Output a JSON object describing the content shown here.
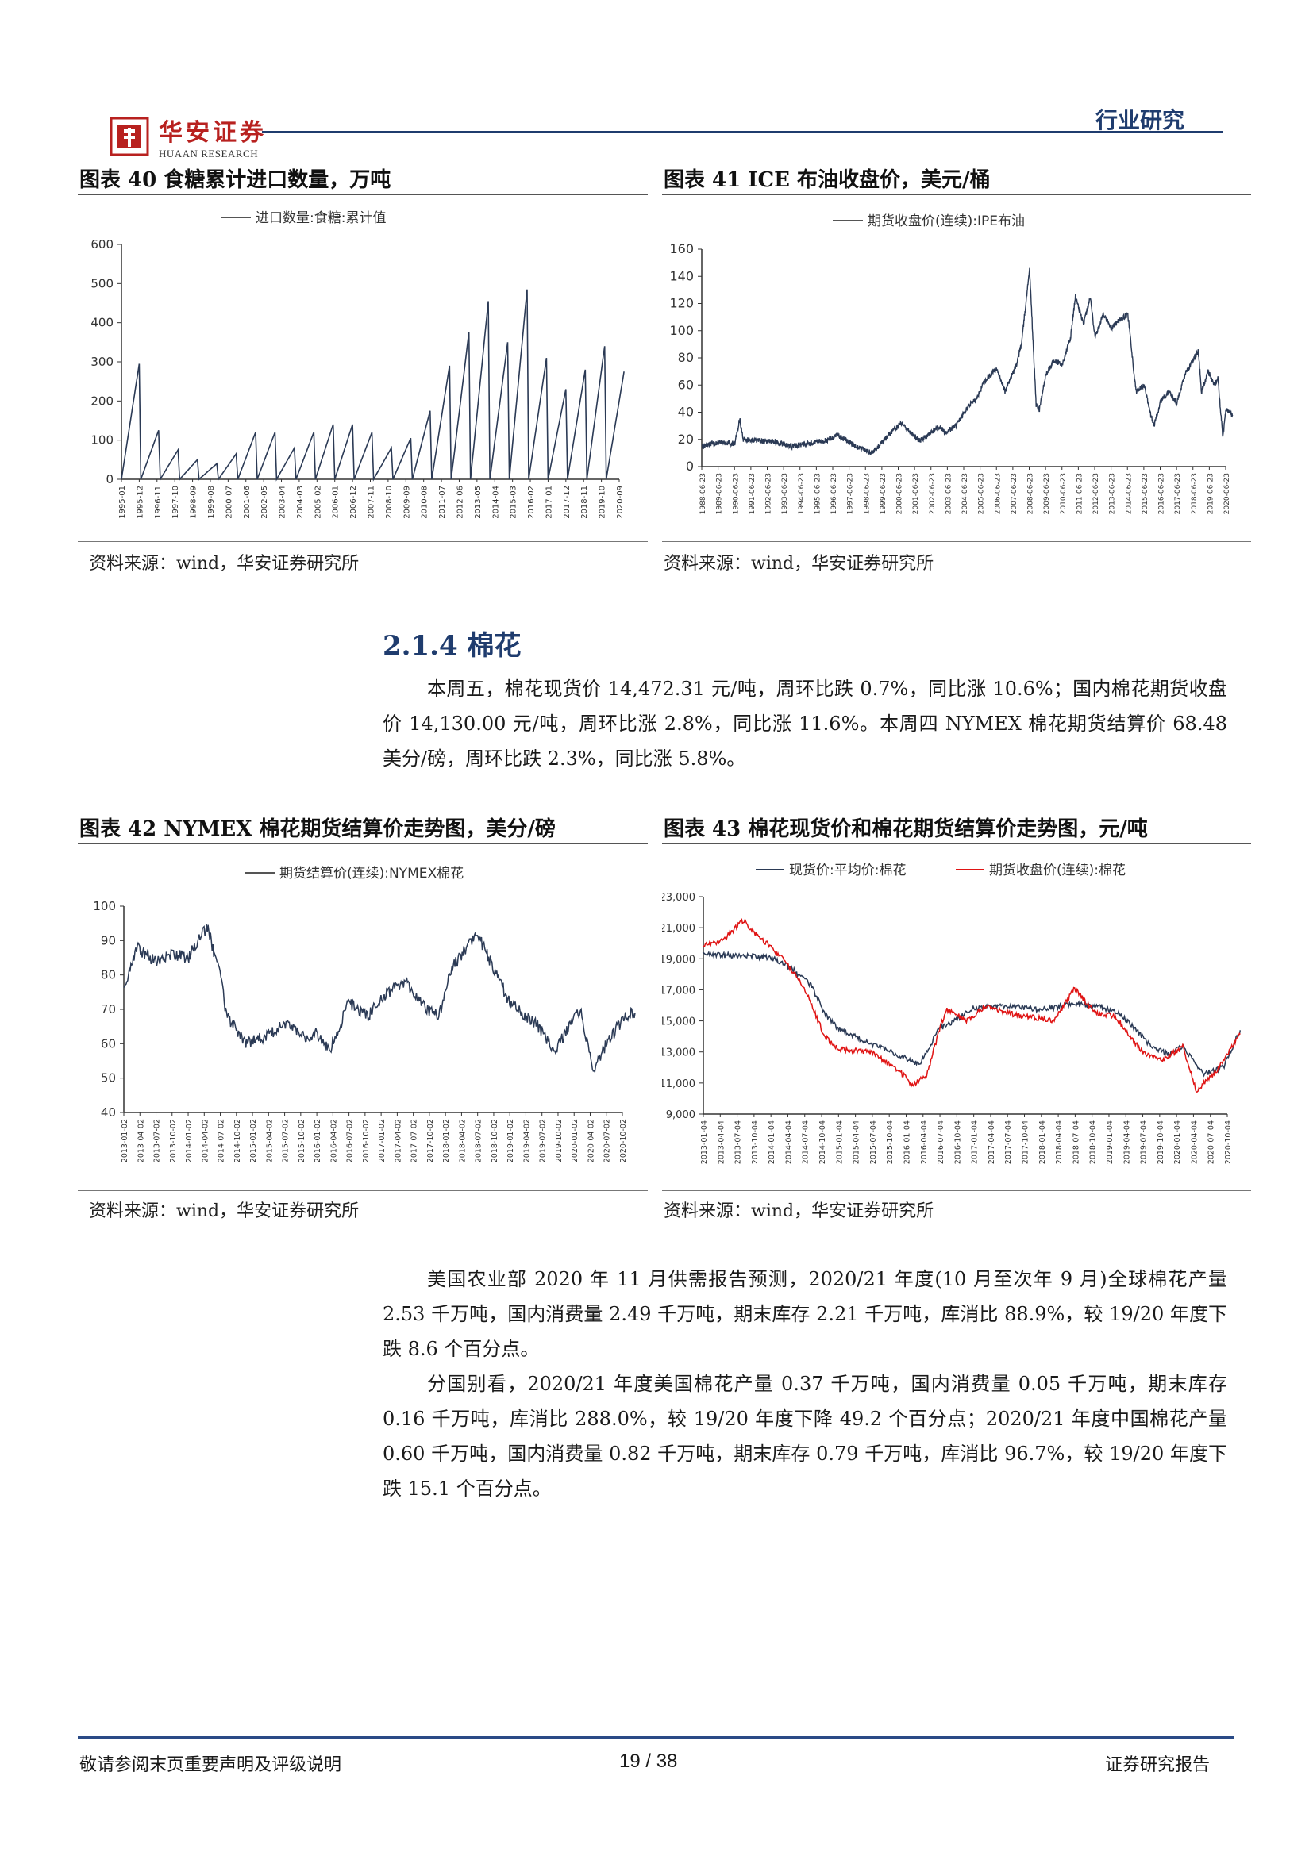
{
  "header": {
    "brand_name": "华安证券",
    "brand_sub": "HUAAN RESEARCH",
    "category": "行业研究"
  },
  "figures": {
    "fig40": {
      "title": "图表 40 食糖累计进口数量，万吨",
      "legend": "进口数量:食糖:累计值",
      "source": "资料来源：wind，华安证券研究所"
    },
    "fig41": {
      "title": "图表 41 ICE 布油收盘价，美元/桶",
      "legend": "期货收盘价(连续):IPE布油",
      "source": "资料来源：wind，华安证券研究所"
    },
    "fig42": {
      "title": "图表 42 NYMEX 棉花期货结算价走势图，美分/磅",
      "legend": "期货结算价(连续):NYMEX棉花",
      "source": "资料来源：wind，华安证券研究所"
    },
    "fig43": {
      "title": "图表 43 棉花现货价和棉花期货结算价走势图，元/吨",
      "legend1": "现货价:平均价:棉花",
      "legend2": "期货收盘价(连续):棉花",
      "source": "资料来源：wind，华安证券研究所"
    }
  },
  "section": {
    "title": "2.1.4 棉花"
  },
  "paragraphs": {
    "p1": "本周五，棉花现货价 14,472.31 元/吨，周环比跌 0.7%，同比涨 10.6%；国内棉花期货收盘价 14,130.00 元/吨，周环比涨 2.8%，同比涨 11.6%。本周四 NYMEX 棉花期货结算价 68.48 美分/磅，周环比跌 2.3%，同比涨 5.8%。",
    "p2": "美国农业部 2020 年 11 月供需报告预测，2020/21 年度(10 月至次年 9 月)全球棉花产量 2.53 千万吨，国内消费量 2.49 千万吨，期末库存 2.21 千万吨，库消比 88.9%，较 19/20 年度下跌 8.6 个百分点。",
    "p3": "分国别看，2020/21 年度美国棉花产量 0.37 千万吨，国内消费量 0.05 千万吨，期末库存 0.16 千万吨，库消比 288.0%，较 19/20 年度下降 49.2 个百分点；2020/21 年度中国棉花产量 0.60 千万吨，国内消费量 0.82 千万吨，期末库存 0.79 千万吨，库消比 96.7%，较 19/20 年度下跌 15.1 个百分点。"
  },
  "footer": {
    "disclaimer": "敬请参阅末页重要声明及评级说明",
    "page": "19 / 38",
    "report_type": "证券研究报告"
  },
  "colors": {
    "brand_red": "#b8211f",
    "navy": "#1f3c6e",
    "series_dark": "#2b3a55",
    "series_red": "#e01414"
  },
  "chart_data": [
    {
      "id": "fig40",
      "type": "line",
      "title": "",
      "ylim": [
        0,
        600
      ],
      "yticks": [
        0,
        100,
        200,
        300,
        400,
        500,
        600
      ],
      "xtick_labels": [
        "1995-01",
        "1995-12",
        "1996-11",
        "1997-10",
        "1998-09",
        "1999-08",
        "2000-07",
        "2001-06",
        "2002-05",
        "2003-04",
        "2004-03",
        "2005-02",
        "2006-01",
        "2006-12",
        "2007-11",
        "2008-10",
        "2009-09",
        "2010-08",
        "2011-07",
        "2012-06",
        "2013-05",
        "2014-04",
        "2015-03",
        "2016-02",
        "2017-01",
        "2017-12",
        "2018-11",
        "2019-10",
        "2020-09"
      ],
      "series": [
        {
          "name": "进口数量:食糖:累计值",
          "annual_peaks": [
            {
              "year": 1995,
              "value": 295
            },
            {
              "year": 1996,
              "value": 125
            },
            {
              "year": 1997,
              "value": 75
            },
            {
              "year": 1998,
              "value": 50
            },
            {
              "year": 1999,
              "value": 40
            },
            {
              "year": 2000,
              "value": 65
            },
            {
              "year": 2001,
              "value": 120
            },
            {
              "year": 2002,
              "value": 120
            },
            {
              "year": 2003,
              "value": 80
            },
            {
              "year": 2004,
              "value": 120
            },
            {
              "year": 2005,
              "value": 140
            },
            {
              "year": 2006,
              "value": 140
            },
            {
              "year": 2007,
              "value": 120
            },
            {
              "year": 2008,
              "value": 80
            },
            {
              "year": 2009,
              "value": 105
            },
            {
              "year": 2010,
              "value": 175
            },
            {
              "year": 2011,
              "value": 290
            },
            {
              "year": 2012,
              "value": 375
            },
            {
              "year": 2013,
              "value": 455
            },
            {
              "year": 2014,
              "value": 350
            },
            {
              "year": 2015,
              "value": 485
            },
            {
              "year": 2016,
              "value": 310
            },
            {
              "year": 2017,
              "value": 230
            },
            {
              "year": 2018,
              "value": 280
            },
            {
              "year": 2019,
              "value": 340
            },
            {
              "year": 2020,
              "value": 275
            }
          ]
        }
      ]
    },
    {
      "id": "fig41",
      "type": "line",
      "title": "",
      "ylim": [
        0,
        160
      ],
      "yticks": [
        0,
        20,
        40,
        60,
        80,
        100,
        120,
        140,
        160
      ],
      "xtick_labels": [
        "1988-06-23",
        "1989-06-23",
        "1990-06-23",
        "1991-06-23",
        "1992-06-23",
        "1993-06-23",
        "1994-06-23",
        "1995-06-23",
        "1996-06-23",
        "1997-06-23",
        "1998-06-23",
        "1999-06-23",
        "2000-06-23",
        "2001-06-23",
        "2002-06-23",
        "2003-06-23",
        "2004-06-23",
        "2005-06-23",
        "2006-06-23",
        "2007-06-23",
        "2008-06-23",
        "2009-06-23",
        "2010-06-23",
        "2011-06-23",
        "2012-06-23",
        "2013-06-23",
        "2014-06-23",
        "2015-06-23",
        "2016-06-23",
        "2017-06-23",
        "2018-06-23",
        "2019-06-23",
        "2020-06-23"
      ],
      "series": [
        {
          "name": "期货收盘价(连续):IPE布油",
          "points": [
            [
              1988.5,
              15
            ],
            [
              1989.5,
              18
            ],
            [
              1990.5,
              17
            ],
            [
              1990.8,
              35
            ],
            [
              1991.0,
              20
            ],
            [
              1992.0,
              19
            ],
            [
              1993.0,
              18
            ],
            [
              1994.0,
              15
            ],
            [
              1995.0,
              17
            ],
            [
              1996.0,
              19
            ],
            [
              1996.8,
              23
            ],
            [
              1997.5,
              18
            ],
            [
              1998.0,
              14
            ],
            [
              1998.9,
              10
            ],
            [
              1999.5,
              18
            ],
            [
              2000.0,
              25
            ],
            [
              2000.7,
              32
            ],
            [
              2001.0,
              27
            ],
            [
              2001.8,
              19
            ],
            [
              2002.5,
              25
            ],
            [
              2003.0,
              30
            ],
            [
              2003.3,
              25
            ],
            [
              2004.0,
              30
            ],
            [
              2004.8,
              45
            ],
            [
              2005.3,
              50
            ],
            [
              2005.7,
              62
            ],
            [
              2006.5,
              72
            ],
            [
              2007.0,
              55
            ],
            [
              2007.7,
              75
            ],
            [
              2008.0,
              90
            ],
            [
              2008.5,
              145
            ],
            [
              2008.9,
              45
            ],
            [
              2009.1,
              42
            ],
            [
              2009.5,
              68
            ],
            [
              2010.0,
              78
            ],
            [
              2010.5,
              75
            ],
            [
              2011.0,
              95
            ],
            [
              2011.3,
              125
            ],
            [
              2011.8,
              105
            ],
            [
              2012.2,
              125
            ],
            [
              2012.5,
              95
            ],
            [
              2013.0,
              112
            ],
            [
              2013.5,
              102
            ],
            [
              2014.0,
              108
            ],
            [
              2014.5,
              112
            ],
            [
              2015.0,
              55
            ],
            [
              2015.5,
              60
            ],
            [
              2015.9,
              38
            ],
            [
              2016.1,
              30
            ],
            [
              2016.5,
              48
            ],
            [
              2017.0,
              55
            ],
            [
              2017.5,
              47
            ],
            [
              2018.0,
              68
            ],
            [
              2018.8,
              85
            ],
            [
              2019.0,
              55
            ],
            [
              2019.4,
              70
            ],
            [
              2019.8,
              60
            ],
            [
              2020.0,
              65
            ],
            [
              2020.3,
              22
            ],
            [
              2020.5,
              42
            ],
            [
              2020.9,
              38
            ]
          ]
        }
      ]
    },
    {
      "id": "fig42",
      "type": "line",
      "title": "",
      "ylim": [
        40,
        100
      ],
      "yticks": [
        40,
        50,
        60,
        70,
        80,
        90,
        100
      ],
      "xtick_labels": [
        "2013-01-02",
        "2013-04-02",
        "2013-07-02",
        "2013-10-02",
        "2014-01-02",
        "2014-04-02",
        "2014-07-02",
        "2014-10-02",
        "2015-01-02",
        "2015-04-02",
        "2015-07-02",
        "2015-10-02",
        "2016-01-02",
        "2016-04-02",
        "2016-07-02",
        "2016-10-02",
        "2017-01-02",
        "2017-04-02",
        "2017-07-02",
        "2017-10-02",
        "2018-01-02",
        "2018-04-02",
        "2018-07-02",
        "2018-10-02",
        "2019-01-02",
        "2019-04-02",
        "2019-07-02",
        "2019-10-02",
        "2020-01-02",
        "2020-04-02",
        "2020-07-02",
        "2020-10-02"
      ],
      "series": [
        {
          "name": "期货结算价(连续):NYMEX棉花",
          "points": [
            [
              2013.0,
              75
            ],
            [
              2013.2,
              88
            ],
            [
              2013.5,
              84
            ],
            [
              2013.8,
              86
            ],
            [
              2014.0,
              85
            ],
            [
              2014.3,
              94
            ],
            [
              2014.5,
              80
            ],
            [
              2014.6,
              68
            ],
            [
              2014.9,
              60
            ],
            [
              2015.2,
              62
            ],
            [
              2015.5,
              66
            ],
            [
              2015.8,
              62
            ],
            [
              2016.0,
              63
            ],
            [
              2016.2,
              58
            ],
            [
              2016.5,
              72
            ],
            [
              2016.8,
              68
            ],
            [
              2017.1,
              75
            ],
            [
              2017.4,
              78
            ],
            [
              2017.7,
              70
            ],
            [
              2017.9,
              68
            ],
            [
              2018.1,
              82
            ],
            [
              2018.5,
              92
            ],
            [
              2018.8,
              80
            ],
            [
              2019.0,
              72
            ],
            [
              2019.4,
              66
            ],
            [
              2019.7,
              58
            ],
            [
              2019.9,
              64
            ],
            [
              2020.1,
              70
            ],
            [
              2020.3,
              52
            ],
            [
              2020.5,
              60
            ],
            [
              2020.8,
              68
            ],
            [
              2020.95,
              69
            ]
          ]
        }
      ]
    },
    {
      "id": "fig43",
      "type": "line",
      "title": "",
      "ylim": [
        9000,
        23000
      ],
      "yticks": [
        9000,
        11000,
        13000,
        15000,
        17000,
        19000,
        21000,
        23000
      ],
      "ytick_labels": [
        "9,000",
        "11,000",
        "13,000",
        "15,000",
        "17,000",
        "19,000",
        "21,000",
        "23,000"
      ],
      "xtick_labels": [
        "2013-01-04",
        "2013-04-04",
        "2013-07-04",
        "2013-10-04",
        "2014-01-04",
        "2014-04-04",
        "2014-07-04",
        "2014-10-04",
        "2015-01-04",
        "2015-04-04",
        "2015-07-04",
        "2015-10-04",
        "2016-01-04",
        "2016-04-04",
        "2016-07-04",
        "2016-10-04",
        "2017-01-04",
        "2017-04-04",
        "2017-07-04",
        "2017-10-04",
        "2018-01-04",
        "2018-04-04",
        "2018-07-04",
        "2018-10-04",
        "2019-01-04",
        "2019-04-04",
        "2019-07-04",
        "2019-10-04",
        "2020-01-04",
        "2020-04-04",
        "2020-07-04",
        "2020-10-04"
      ],
      "series": [
        {
          "name": "现货价:平均价:棉花",
          "color": "#2b3a55",
          "points": [
            [
              2013.0,
              19300
            ],
            [
              2013.5,
              19200
            ],
            [
              2014.0,
              19100
            ],
            [
              2014.3,
              18400
            ],
            [
              2014.6,
              17300
            ],
            [
              2014.8,
              15500
            ],
            [
              2015.0,
              14500
            ],
            [
              2015.5,
              13500
            ],
            [
              2015.9,
              12800
            ],
            [
              2016.2,
              12200
            ],
            [
              2016.5,
              14500
            ],
            [
              2016.8,
              15200
            ],
            [
              2017.0,
              15800
            ],
            [
              2017.5,
              16000
            ],
            [
              2018.0,
              15700
            ],
            [
              2018.5,
              16100
            ],
            [
              2018.9,
              15900
            ],
            [
              2019.2,
              15400
            ],
            [
              2019.6,
              13500
            ],
            [
              2019.9,
              12800
            ],
            [
              2020.1,
              13400
            ],
            [
              2020.4,
              11600
            ],
            [
              2020.7,
              12000
            ],
            [
              2020.95,
              14400
            ]
          ]
        },
        {
          "name": "期货收盘价(连续):棉花",
          "color": "#e01414",
          "points": [
            [
              2013.0,
              19800
            ],
            [
              2013.3,
              20200
            ],
            [
              2013.6,
              21500
            ],
            [
              2013.8,
              20500
            ],
            [
              2014.0,
              19800
            ],
            [
              2014.3,
              18400
            ],
            [
              2014.5,
              17200
            ],
            [
              2014.8,
              14000
            ],
            [
              2015.0,
              13200
            ],
            [
              2015.5,
              13000
            ],
            [
              2015.9,
              11800
            ],
            [
              2016.1,
              10900
            ],
            [
              2016.3,
              11400
            ],
            [
              2016.6,
              15800
            ],
            [
              2016.9,
              15000
            ],
            [
              2017.2,
              16000
            ],
            [
              2017.5,
              15500
            ],
            [
              2017.9,
              15200
            ],
            [
              2018.2,
              15000
            ],
            [
              2018.5,
              17100
            ],
            [
              2018.8,
              15500
            ],
            [
              2019.1,
              15300
            ],
            [
              2019.5,
              13000
            ],
            [
              2019.8,
              12500
            ],
            [
              2020.1,
              13300
            ],
            [
              2020.3,
              10500
            ],
            [
              2020.6,
              11800
            ],
            [
              2020.95,
              14130
            ]
          ]
        }
      ]
    }
  ]
}
